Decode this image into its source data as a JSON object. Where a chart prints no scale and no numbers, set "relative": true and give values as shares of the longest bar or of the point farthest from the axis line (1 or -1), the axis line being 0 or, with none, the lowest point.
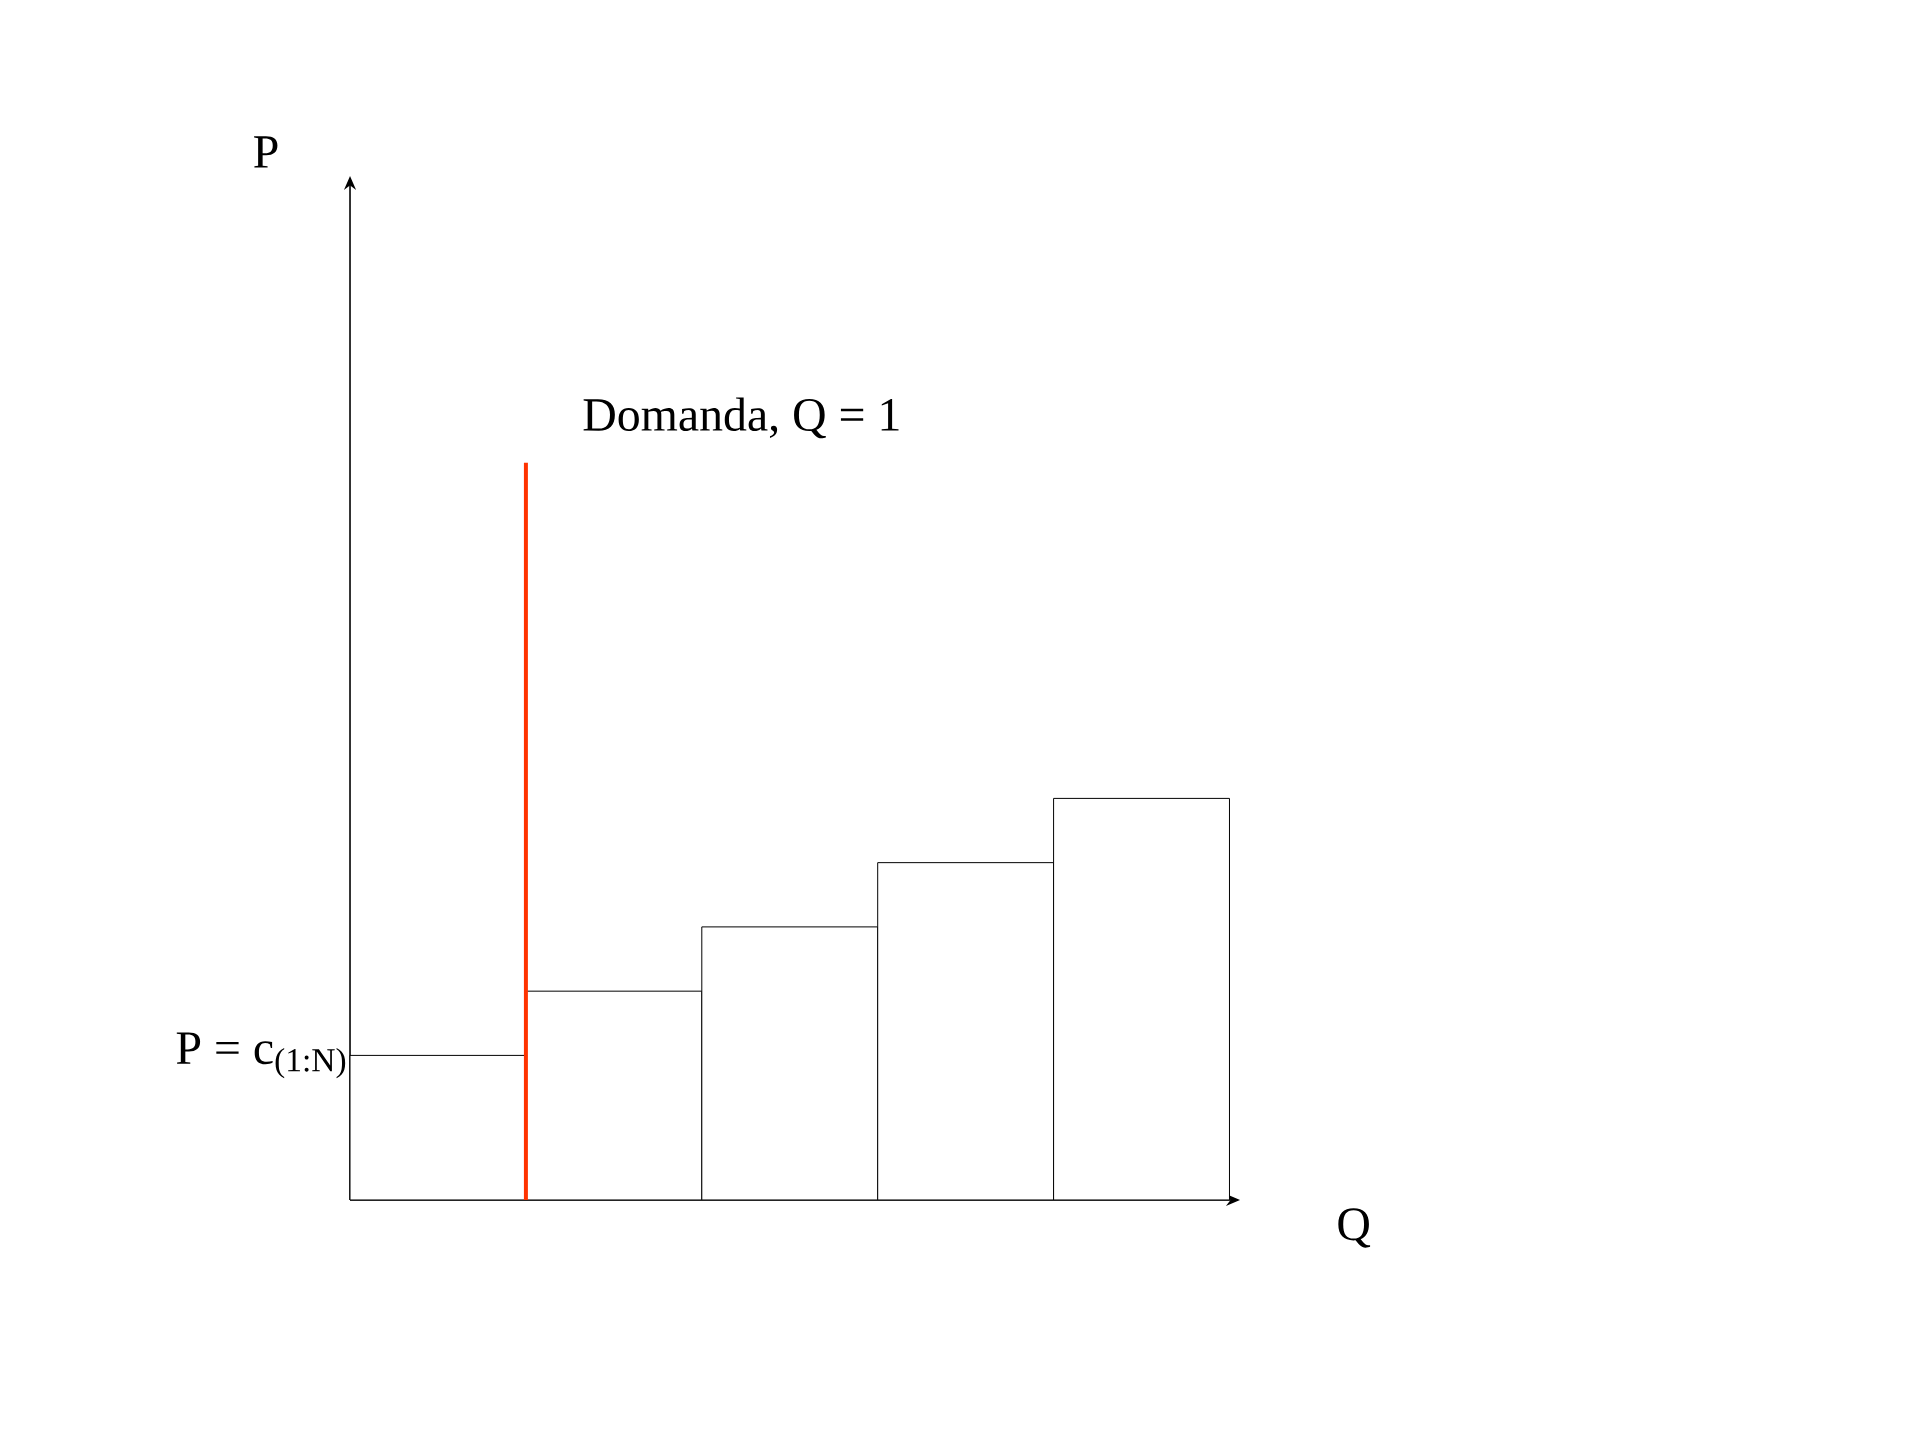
{
  "chart_data": {
    "type": "bar",
    "relative": true,
    "xlabel": "Q",
    "categories": [
      null,
      null,
      null,
      null,
      null
    ],
    "values": [
      0.36,
      0.52,
      0.68,
      0.84,
      1.0
    ],
    "color": "#ffffff",
    "ref_lines": [
      {
        "axis": "x",
        "label": "Domanda, Q = 1",
        "color": "#ff3300"
      }
    ],
    "annotations": [
      "P = c$_{(1:N)}$",
      "P"
    ]
  }
}
